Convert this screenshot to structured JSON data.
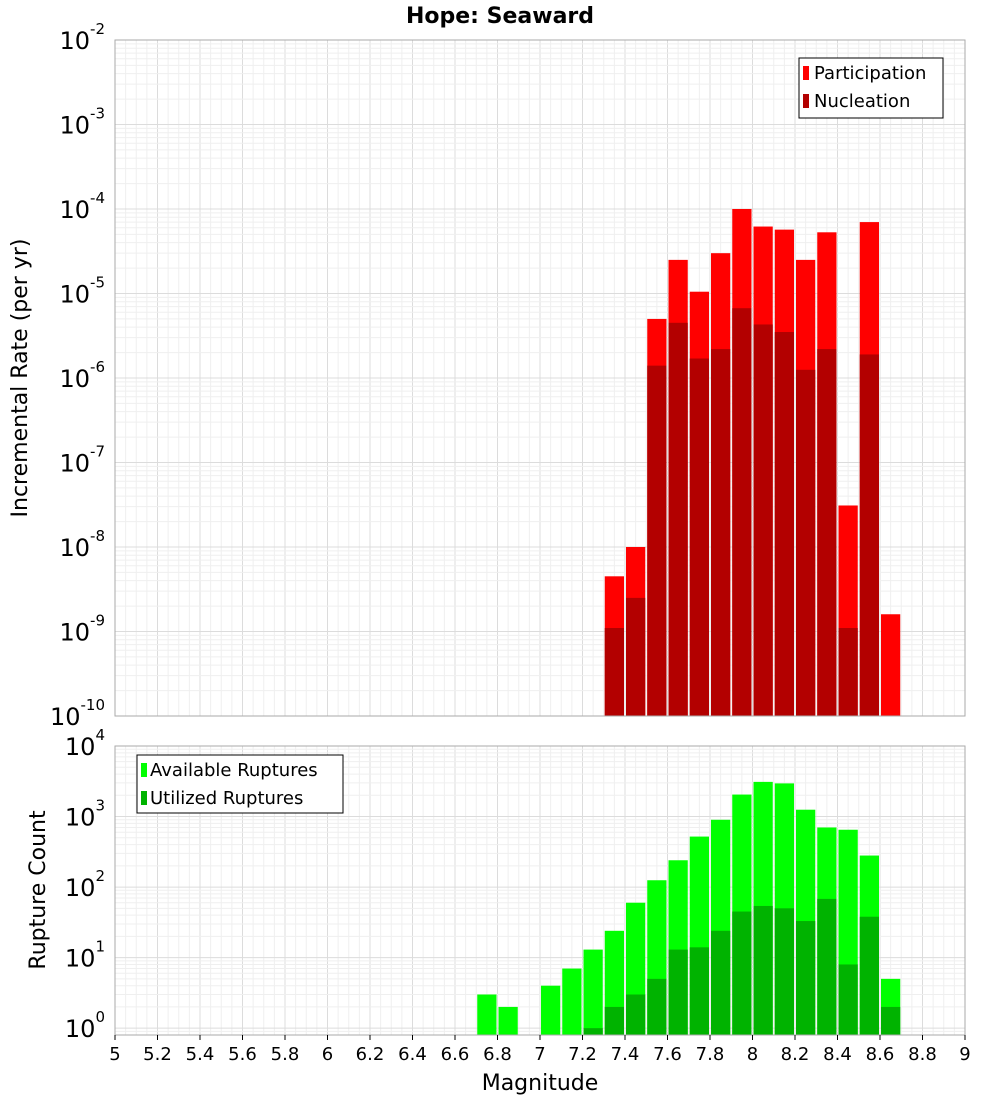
{
  "chart_data": [
    {
      "type": "bar",
      "title": "Hope: Seaward",
      "xlabel": "",
      "ylabel": "Incremental Rate (per yr)",
      "xlim": [
        5,
        9
      ],
      "ylim": [
        1e-10,
        0.01
      ],
      "yscale": "log",
      "ytick_exponents": [
        -10,
        -9,
        -8,
        -7,
        -6,
        -5,
        -4,
        -3,
        -2
      ],
      "grid": true,
      "legend_position": "top-right",
      "x": [
        7.35,
        7.45,
        7.55,
        7.65,
        7.75,
        7.85,
        7.95,
        8.05,
        8.15,
        8.25,
        8.35,
        8.45,
        8.55,
        8.65
      ],
      "series": [
        {
          "name": "Participation",
          "color": "#ff0000",
          "values": [
            4.5e-09,
            1e-08,
            5e-06,
            2.5e-05,
            1.05e-05,
            3e-05,
            0.0001,
            6.2e-05,
            5.7e-05,
            2.5e-05,
            5.3e-05,
            3.1e-08,
            7e-05,
            1.6e-09
          ]
        },
        {
          "name": "Nucleation",
          "color": "#b30000",
          "values": [
            1.1e-09,
            2.5e-09,
            1.4e-06,
            4.5e-06,
            1.7e-06,
            2.2e-06,
            6.7e-06,
            4.3e-06,
            3.5e-06,
            1.25e-06,
            2.2e-06,
            1.1e-09,
            1.9e-06,
            null
          ]
        }
      ]
    },
    {
      "type": "bar",
      "xlabel": "Magnitude",
      "ylabel": "Rupture Count",
      "xlim": [
        5,
        9
      ],
      "xticks": [
        "5",
        "5.2",
        "5.4",
        "5.6",
        "5.8",
        "6",
        "6.2",
        "6.4",
        "6.6",
        "6.8",
        "7",
        "7.2",
        "7.4",
        "7.6",
        "7.8",
        "8",
        "8.2",
        "8.4",
        "8.6",
        "8.8",
        "9"
      ],
      "ylim": [
        0.8,
        10000
      ],
      "yscale": "log",
      "ytick_exponents": [
        0,
        1,
        2,
        3,
        4
      ],
      "grid": true,
      "legend_position": "top-left",
      "x": [
        6.75,
        6.85,
        7.05,
        7.15,
        7.25,
        7.35,
        7.45,
        7.55,
        7.65,
        7.75,
        7.85,
        7.95,
        8.05,
        8.15,
        8.25,
        8.35,
        8.45,
        8.55,
        8.65
      ],
      "series": [
        {
          "name": "Available Ruptures",
          "color": "#00ff00",
          "values": [
            3,
            2,
            4,
            7,
            13,
            24,
            60,
            125,
            240,
            520,
            900,
            2050,
            3100,
            2950,
            1250,
            700,
            650,
            280,
            5
          ]
        },
        {
          "name": "Utilized Ruptures",
          "color": "#00b300",
          "values": [
            null,
            null,
            null,
            null,
            1,
            2,
            3,
            5,
            13,
            14,
            24,
            45,
            54,
            50,
            33,
            68,
            8,
            38,
            2
          ]
        }
      ]
    }
  ]
}
